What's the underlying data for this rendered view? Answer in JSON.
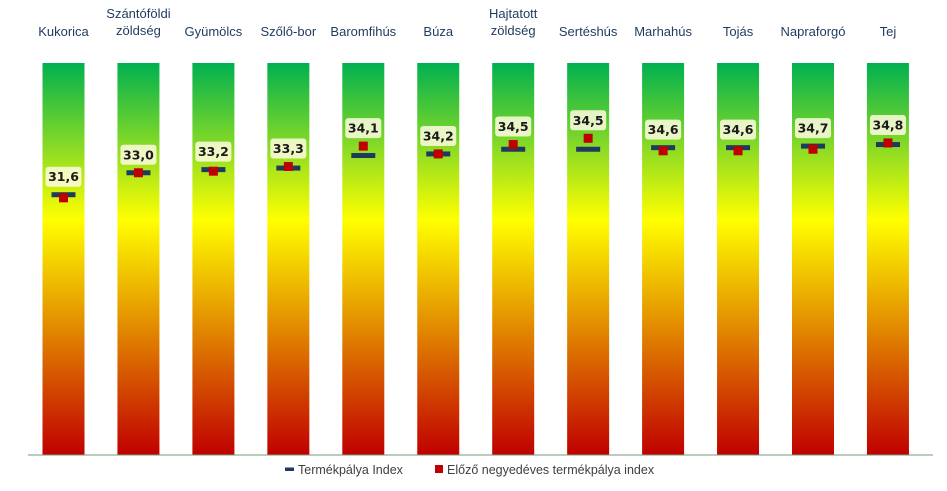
{
  "chart_data": {
    "type": "bar",
    "categories": [
      [
        "Kukorica"
      ],
      [
        "Szántóföldi",
        "zöldség"
      ],
      [
        "Gyümölcs"
      ],
      [
        "Szőlő-bor"
      ],
      [
        "Baromfihús"
      ],
      [
        "Búza"
      ],
      [
        "Hajtatott",
        "zöldség"
      ],
      [
        "Sertéshús"
      ],
      [
        "Marhahús"
      ],
      [
        "Tojás"
      ],
      [
        "Napraforgó"
      ],
      [
        "Tej"
      ]
    ],
    "series": [
      {
        "name": "Termékpálya Index",
        "values": [
          31.6,
          33.0,
          33.2,
          33.3,
          34.1,
          34.2,
          34.5,
          34.5,
          34.6,
          34.6,
          34.7,
          34.8
        ],
        "labels": [
          "31,6",
          "33,0",
          "33,2",
          "33,3",
          "34,1",
          "34,2",
          "34,5",
          "34,5",
          "34,6",
          "34,6",
          "34,7",
          "34,8"
        ],
        "color": "#1f3a5f",
        "marker": "dash"
      },
      {
        "name": "Előző negyedéves termékpálya index",
        "values": [
          31.4,
          33.0,
          33.1,
          33.4,
          34.7,
          34.2,
          34.8,
          35.2,
          34.4,
          34.4,
          34.5,
          34.9
        ],
        "color": "#c00000",
        "marker": "square"
      }
    ],
    "ylim": [
      15,
      40
    ],
    "gradient": [
      "#00b050",
      "#ffff00",
      "#c00000"
    ],
    "legend_position": "bottom"
  }
}
